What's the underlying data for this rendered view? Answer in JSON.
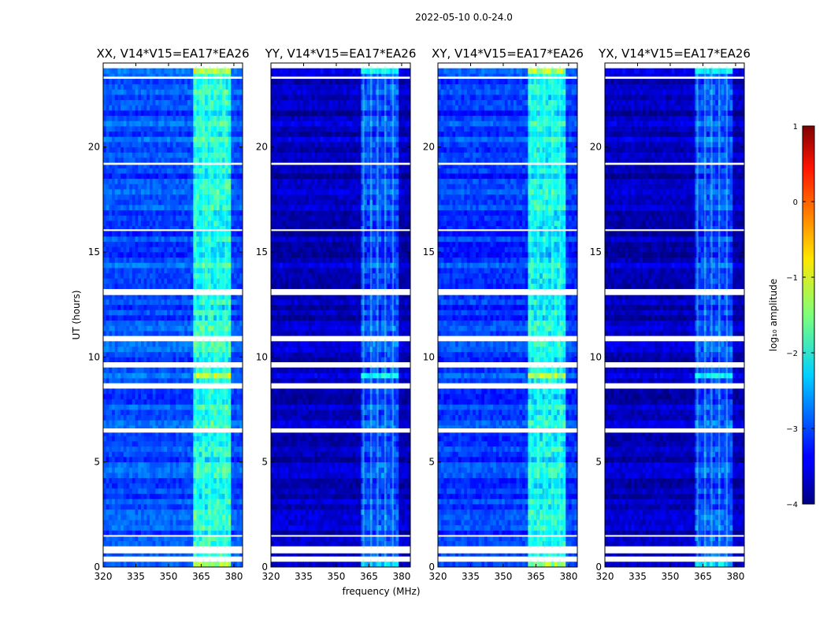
{
  "chart_data": {
    "type": "heatmap",
    "suptitle": "2022-05-10 0.0-24.0",
    "xlabel": "frequency (MHz)",
    "ylabel": "UT (hours)",
    "xlim": [
      320,
      384
    ],
    "ylim": [
      0,
      24
    ],
    "x_ticks": [
      320,
      335,
      350,
      365,
      380
    ],
    "y_ticks": [
      0,
      5,
      10,
      15,
      20
    ],
    "panels": [
      {
        "title": "XX, V14*V15=EA17*EA26",
        "base_log_amp": -3.0,
        "rfi_boost": 1.3
      },
      {
        "title": "YY, V14*V15=EA17*EA26",
        "base_log_amp": -3.7,
        "rfi_boost": 0.9
      },
      {
        "title": "XY, V14*V15=EA17*EA26",
        "base_log_amp": -3.1,
        "rfi_boost": 1.3
      },
      {
        "title": "YX, V14*V15=EA17*EA26",
        "base_log_amp": -3.7,
        "rfi_boost": 0.9
      }
    ],
    "rfi_band_mhz": [
      361,
      379
    ],
    "rfi_channels_mhz": [
      362.5,
      366,
      369,
      372.5,
      376
    ],
    "flagged_hours": [
      [
        0.35,
        0.5
      ],
      [
        0.65,
        0.9
      ],
      [
        1.45,
        1.52
      ],
      [
        6.4,
        6.6
      ],
      [
        8.5,
        8.75
      ],
      [
        9.6,
        9.75
      ],
      [
        10.85,
        11.0
      ],
      [
        12.95,
        13.15
      ],
      [
        16.0,
        16.08
      ],
      [
        19.15,
        19.25
      ],
      [
        23.25,
        23.35
      ],
      [
        23.85,
        24.0
      ]
    ],
    "bright_hours": [
      [
        0.0,
        0.25
      ],
      [
        9.0,
        9.3
      ],
      [
        23.4,
        23.7
      ]
    ],
    "colorbar": {
      "label": "log₁₀ amplitude",
      "min": -4,
      "max": 1,
      "ticks": [
        "1",
        "0",
        "−1",
        "−2",
        "−3",
        "−4"
      ],
      "tick_values": [
        1,
        0,
        -1,
        -2,
        -3,
        -4
      ],
      "colormap": "jet"
    }
  }
}
